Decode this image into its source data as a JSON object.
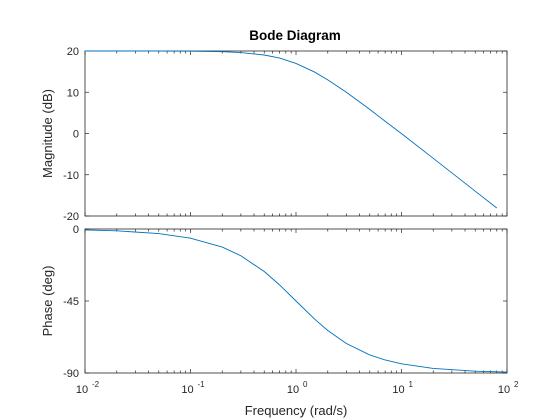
{
  "chart_data": {
    "type": "line",
    "title": "Bode Diagram",
    "xlabel": "Frequency  (rad/s)",
    "xscale": "log",
    "xlim": [
      0.01,
      100
    ],
    "xticks": [
      {
        "base": "10",
        "exp": "-2"
      },
      {
        "base": "10",
        "exp": "-1"
      },
      {
        "base": "10",
        "exp": "0"
      },
      {
        "base": "10",
        "exp": "1"
      },
      {
        "base": "10",
        "exp": "2"
      }
    ],
    "grid": false,
    "line_color": "#0072BD",
    "panels": [
      {
        "name": "magnitude",
        "ylabel": "Magnitude (dB)",
        "ylim": [
          -20,
          20
        ],
        "yticks": [
          "20",
          "10",
          "0",
          "-10",
          "-20"
        ],
        "x": [
          0.01,
          0.02,
          0.05,
          0.1,
          0.2,
          0.3,
          0.5,
          0.7,
          1,
          1.5,
          2,
          3,
          5,
          7,
          10,
          20,
          50,
          80
        ],
        "y": [
          20,
          20,
          20,
          19.96,
          19.83,
          19.63,
          19.03,
          18.29,
          16.99,
          14.89,
          13.01,
          10.0,
          5.85,
          2.97,
          -0.04,
          -6.02,
          -13.98,
          -18.06
        ]
      },
      {
        "name": "phase",
        "ylabel": "Phase (deg)",
        "ylim": [
          -90,
          0
        ],
        "yticks": [
          "0",
          "-45",
          "-90"
        ],
        "x": [
          0.01,
          0.02,
          0.05,
          0.1,
          0.2,
          0.3,
          0.5,
          0.7,
          1,
          1.5,
          2,
          3,
          5,
          7,
          10,
          20,
          50,
          100
        ],
        "y": [
          -0.57,
          -1.15,
          -2.86,
          -5.71,
          -11.31,
          -16.7,
          -26.57,
          -34.99,
          -45,
          -56.31,
          -63.43,
          -71.57,
          -78.69,
          -81.87,
          -84.29,
          -87.14,
          -88.85,
          -89.43
        ]
      }
    ]
  }
}
